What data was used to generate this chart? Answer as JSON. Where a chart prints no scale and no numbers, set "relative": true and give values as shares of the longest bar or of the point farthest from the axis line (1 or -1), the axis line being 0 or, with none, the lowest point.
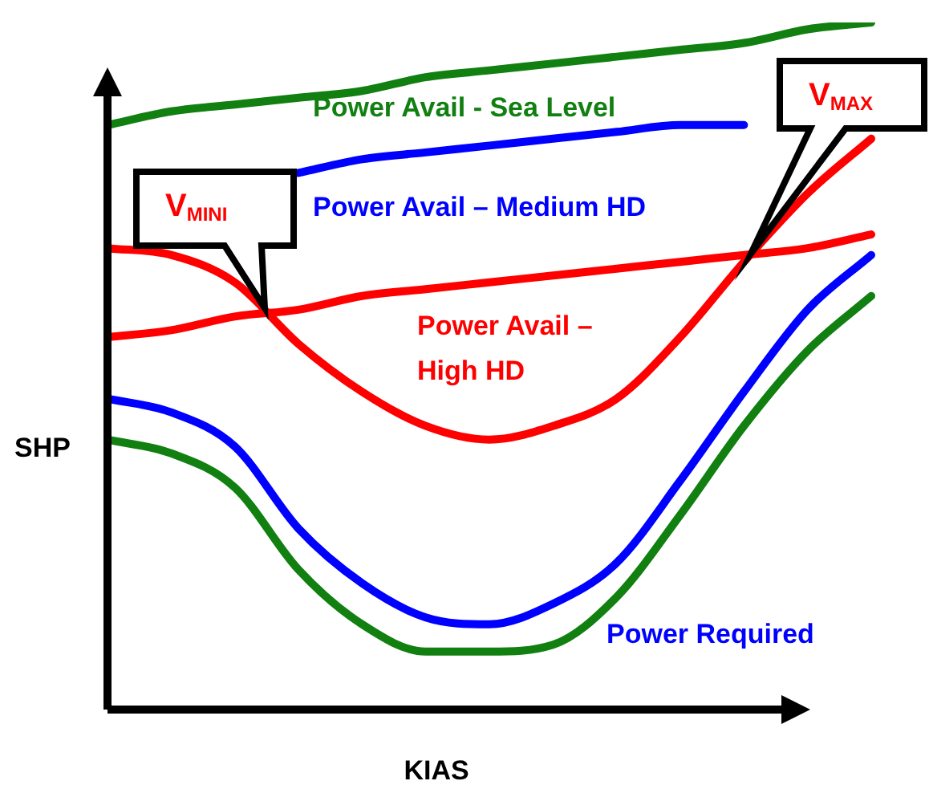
{
  "chart_data": {
    "type": "line",
    "relative": true,
    "xlabel": "KIAS",
    "ylabel": "SHP",
    "legend": false,
    "marker": "none",
    "line_style": "solid",
    "categories": [
      null,
      null,
      null,
      null,
      null,
      null,
      null,
      null,
      null,
      null,
      null,
      null,
      null
    ],
    "series": [
      {
        "name": "Power Avail - Sea Level",
        "color": "#118011",
        "values": [
          0.85,
          0.87,
          0.88,
          0.89,
          0.9,
          0.92,
          0.93,
          0.94,
          0.95,
          0.96,
          0.97,
          0.99,
          1
        ]
      },
      {
        "name": "Power Avail – Medium HD",
        "color": "#0000ff",
        "values": [
          null,
          null,
          null,
          0.78,
          0.8,
          0.81,
          0.82,
          0.83,
          0.84,
          0.85,
          0.85,
          null,
          null
        ]
      },
      {
        "name": "Power Avail – High HD",
        "color": "#ff0000",
        "values": [
          0.54,
          0.55,
          0.57,
          0.58,
          0.6,
          0.61,
          0.62,
          0.63,
          0.64,
          0.65,
          0.66,
          0.67,
          0.69
        ]
      },
      {
        "color": "#ff0000",
        "values": [
          0.67,
          0.66,
          0.62,
          0.53,
          0.46,
          0.41,
          0.39,
          0.41,
          0.45,
          0.54,
          0.65,
          0.75,
          0.83
        ]
      },
      {
        "name": "Power Required",
        "color": "#0000ff",
        "values": [
          0.45,
          0.43,
          0.38,
          0.26,
          0.18,
          0.13,
          0.12,
          0.15,
          0.21,
          0.33,
          0.46,
          0.58,
          0.66
        ]
      },
      {
        "color": "#118011",
        "values": [
          0.39,
          0.37,
          0.32,
          0.2,
          0.12,
          0.08,
          0.08,
          0.09,
          0.16,
          0.28,
          0.41,
          0.52,
          0.6
        ]
      }
    ],
    "annotations": [
      "V$_{MINI}$",
      "V$_{MAX}$"
    ]
  }
}
